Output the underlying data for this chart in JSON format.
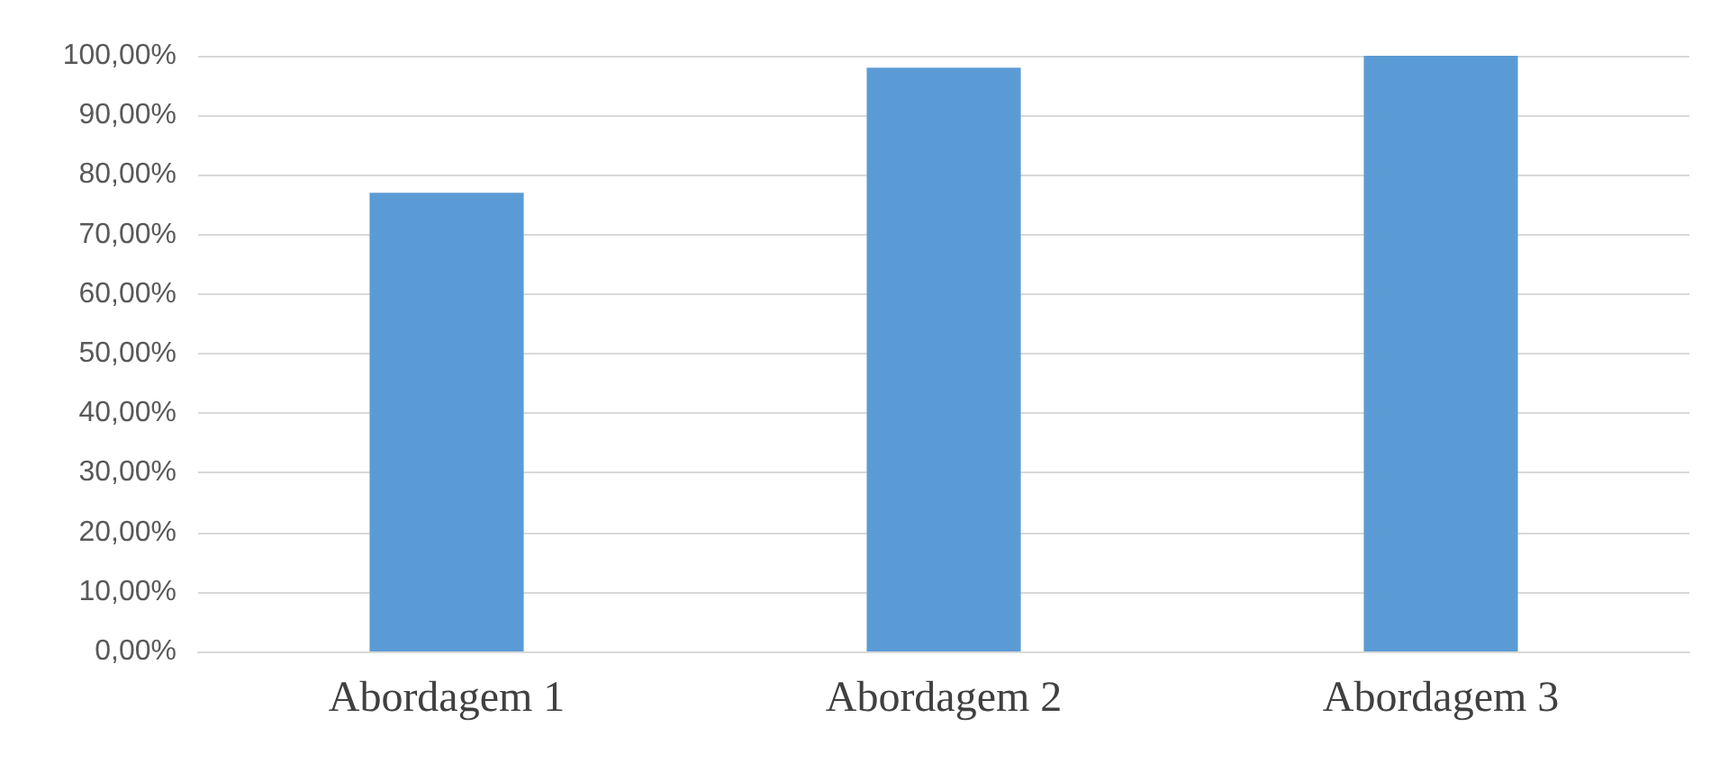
{
  "chart_data": {
    "type": "bar",
    "categories": [
      "Abordagem 1",
      "Abordagem 2",
      "Abordagem 3"
    ],
    "values": [
      77,
      98,
      100
    ],
    "color": "#5b9bd5",
    "ylim": [
      0,
      100
    ],
    "yticks": [
      {
        "value": 0,
        "label": "0,00%"
      },
      {
        "value": 10,
        "label": "10,00%"
      },
      {
        "value": 20,
        "label": "20,00%"
      },
      {
        "value": 30,
        "label": "30,00%"
      },
      {
        "value": 40,
        "label": "40,00%"
      },
      {
        "value": 50,
        "label": "50,00%"
      },
      {
        "value": 60,
        "label": "60,00%"
      },
      {
        "value": 70,
        "label": "70,00%"
      },
      {
        "value": 80,
        "label": "80,00%"
      },
      {
        "value": 90,
        "label": "90,00%"
      },
      {
        "value": 100,
        "label": "100,00%"
      }
    ],
    "grid": "y"
  }
}
